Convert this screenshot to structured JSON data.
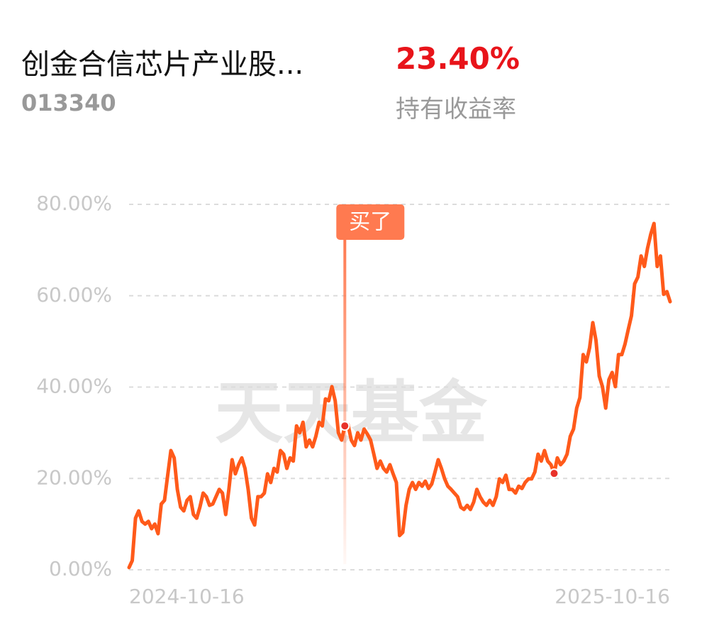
{
  "header": {
    "title": "创金合信芯片产业股...",
    "code": "013340",
    "return_value": "23.40%",
    "return_label": "持有收益率"
  },
  "watermark": "天天基金",
  "chart_data": {
    "type": "line",
    "categories": [
      "2024-10-16",
      null,
      null,
      null,
      null,
      null,
      null,
      null,
      null,
      null,
      null,
      null,
      null,
      null,
      null,
      null,
      null,
      null,
      null,
      null,
      null,
      null,
      null,
      null,
      null,
      null,
      null,
      null,
      null,
      null,
      null,
      null,
      null,
      null,
      null,
      null,
      null,
      null,
      null,
      null,
      null,
      null,
      null,
      null,
      null,
      null,
      null,
      null,
      null,
      null,
      null,
      null,
      null,
      null,
      null,
      null,
      null,
      null,
      null,
      null,
      null,
      null,
      null,
      null,
      null,
      null,
      null,
      null,
      null,
      null,
      null,
      null,
      null,
      null,
      null,
      null,
      null,
      null,
      null,
      null,
      null,
      null,
      null,
      null,
      null,
      null,
      null,
      null,
      null,
      null,
      null,
      null,
      null,
      null,
      null,
      null,
      null,
      null,
      null,
      null,
      null,
      null,
      null,
      null,
      null,
      null,
      null,
      null,
      null,
      null,
      null,
      null,
      null,
      null,
      null,
      null,
      null,
      null,
      null,
      null,
      null,
      null,
      null,
      null,
      null,
      null,
      null,
      null,
      null,
      null,
      null,
      null,
      null,
      null,
      null,
      null,
      null,
      null,
      null,
      null,
      null,
      null,
      null,
      null,
      null,
      null,
      null,
      null,
      null,
      null,
      null,
      null,
      null,
      null,
      null,
      null,
      null,
      null,
      null,
      null,
      null,
      null,
      null,
      null,
      null,
      null,
      null,
      null,
      "2025-10-16"
    ],
    "series": [
      {
        "color": "#ff5a1a",
        "values": [
          0.5,
          2,
          11.3,
          12.9,
          10.6,
          10,
          10.6,
          9,
          10,
          7.9,
          14.4,
          15.2,
          20.7,
          26.1,
          24.5,
          17.6,
          13.7,
          12.9,
          15.2,
          16,
          12.1,
          11.3,
          13.7,
          16.8,
          16,
          14.1,
          14.4,
          16,
          17.6,
          16.8,
          12.1,
          17.6,
          24.1,
          21,
          23,
          24.5,
          22.2,
          17.6,
          11.3,
          9.8,
          16,
          16,
          16.8,
          21,
          19.1,
          22.2,
          21.4,
          26.1,
          25.3,
          22.2,
          24.5,
          23.8,
          31.5,
          30,
          32.3,
          26.9,
          28.4,
          26.9,
          29.2,
          32.3,
          31.5,
          37.4,
          37,
          40.1,
          37,
          30,
          28.4,
          31.5,
          31.8,
          28.4,
          27.2,
          30,
          28.4,
          30.8,
          29.7,
          28.4,
          25.3,
          22.2,
          23.8,
          22.2,
          21.4,
          23,
          21,
          19.1,
          7.5,
          8.2,
          14.1,
          17.6,
          19.1,
          17.6,
          19.1,
          18.3,
          19.4,
          17.8,
          18.8,
          21.4,
          24.1,
          22.2,
          19.9,
          18.3,
          17.6,
          16.8,
          16,
          13.7,
          13.2,
          14.1,
          13.2,
          14.8,
          17.6,
          16,
          14.8,
          14.1,
          15.2,
          14.1,
          16,
          19.9,
          19.1,
          20.7,
          17.6,
          17.6,
          16.8,
          18.3,
          17.8,
          19.1,
          19.9,
          19.9,
          21.4,
          25.3,
          23.8,
          26.1,
          23.8,
          23,
          21.1,
          24.5,
          23,
          23.8,
          25.3,
          29.2,
          30.8,
          35.4,
          37.7,
          47.1,
          45.5,
          48.6,
          54.1,
          50.2,
          42.4,
          40.1,
          35.4,
          41.6,
          43.2,
          40.1,
          47.1,
          47.1,
          49.4,
          52.6,
          55.6,
          62.6,
          64.1,
          68.7,
          66.4,
          70.4,
          73.5,
          75.8,
          66.4,
          68.7,
          60.3,
          60.9,
          58.7
        ]
      }
    ],
    "markers": [
      {
        "label": "买了",
        "index": 67
      },
      {
        "index": 132
      }
    ],
    "marker_color": "#e8322a",
    "ylim": [
      0,
      80
    ],
    "yticks": [
      {
        "value": 0,
        "label": "0.00%"
      },
      {
        "value": 20,
        "label": "20.00%"
      },
      {
        "value": 40,
        "label": "40.00%"
      },
      {
        "value": 60,
        "label": "60.00%"
      },
      {
        "value": 80,
        "label": "80.00%"
      }
    ],
    "grid": true
  }
}
